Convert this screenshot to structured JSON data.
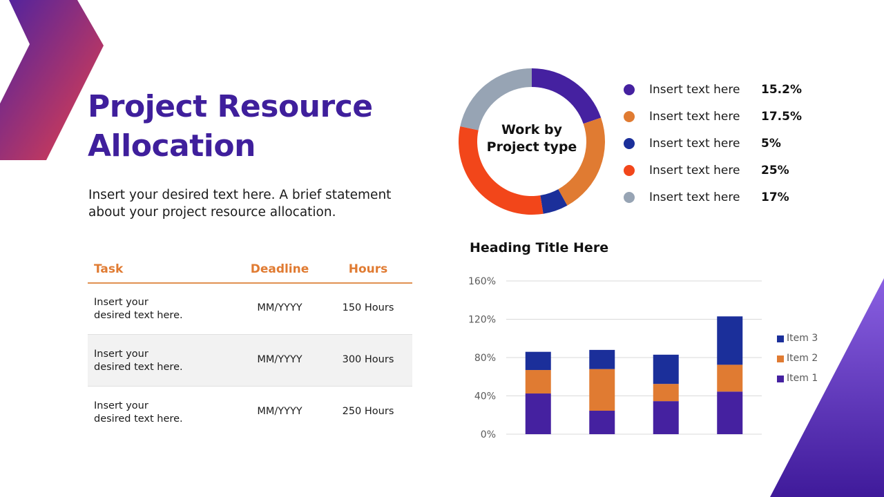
{
  "slide": {
    "title": "Project Resource Allocation",
    "title_line1": "Project Resource",
    "title_line2": "Allocation",
    "subtitle_line1": "Insert your desired text here. A brief statement",
    "subtitle_line2": "about your project resource allocation.",
    "colors": {
      "title": "#3f1f9c",
      "accent_orange": "#e07b32",
      "chevron_gradient": [
        "#4d22a0",
        "#e04048"
      ],
      "corner_gradient": [
        "#8a5fe0",
        "#3f1a9a"
      ]
    }
  },
  "table": {
    "headers": {
      "task": "Task",
      "deadline": "Deadline",
      "hours": "Hours"
    },
    "rows": [
      {
        "task_line1": "Insert your",
        "task_line2": "desired text here.",
        "deadline": "MM/YYYY",
        "hours": "150 Hours"
      },
      {
        "task_line1": "Insert your",
        "task_line2": "desired text here.",
        "deadline": "MM/YYYY",
        "hours": "300 Hours"
      },
      {
        "task_line1": "Insert your",
        "task_line2": "desired text here.",
        "deadline": "MM/YYYY",
        "hours": "250 Hours"
      }
    ]
  },
  "chart_data": [
    {
      "type": "pie",
      "variant": "donut",
      "title": "Work by Project type",
      "center_line1": "Work by",
      "center_line2": "Project type",
      "legend_position": "right",
      "slices": [
        {
          "label": "Insert text here",
          "value_label": "15.2%",
          "color": "#4521a0",
          "sweep_deg": 71
        },
        {
          "label": "Insert text here",
          "value_label": "17.5%",
          "color": "#e07b32",
          "sweep_deg": 80
        },
        {
          "label": "Insert text here",
          "value_label": "5%",
          "color": "#1b2f9a",
          "sweep_deg": 20
        },
        {
          "label": "Insert text here",
          "value_label": "25%",
          "color": "#f2461a",
          "sweep_deg": 111
        },
        {
          "label": "Insert text here",
          "value_label": "17%",
          "color": "#97a4b4",
          "sweep_deg": 78
        }
      ]
    },
    {
      "type": "bar",
      "stacked": true,
      "title": "Heading Title Here",
      "xlabel": "",
      "ylabel": "",
      "categories": [
        "",
        "",
        "",
        ""
      ],
      "yticks": [
        "0%",
        "40%",
        "80%",
        "120%",
        "160%"
      ],
      "ylim": [
        0,
        160
      ],
      "grid": true,
      "legend_position": "right",
      "series": [
        {
          "name": "Item 1",
          "color": "#4521a0",
          "values": [
            42.5,
            24.5,
            34.5,
            44.5
          ]
        },
        {
          "name": "Item 2",
          "color": "#e07b32",
          "values": [
            24.5,
            43.5,
            18,
            28
          ]
        },
        {
          "name": "Item 3",
          "color": "#1b2f9a",
          "values": [
            19,
            20,
            30.5,
            50.5
          ]
        }
      ],
      "legend_order": [
        "Item 3",
        "Item 2",
        "Item 1"
      ]
    }
  ]
}
